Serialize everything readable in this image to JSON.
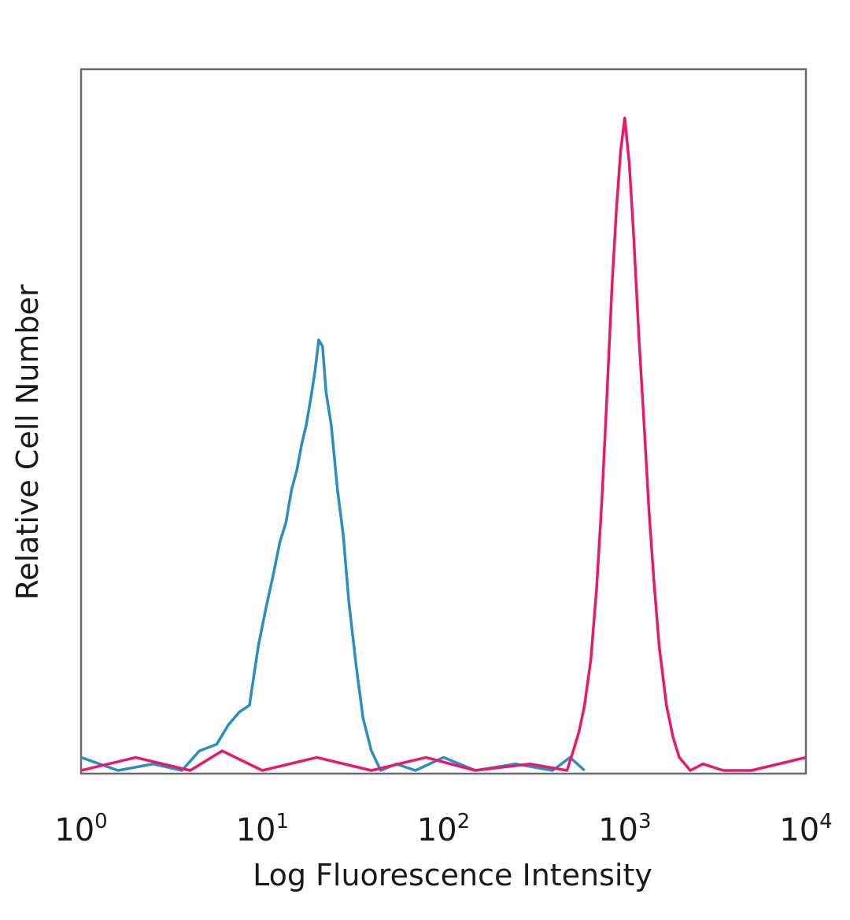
{
  "chart_data": {
    "type": "line",
    "title": "",
    "xlabel": "Log Fluorescence Intensity",
    "ylabel": "Relative Cell Number",
    "x_scale": "log",
    "xlim": [
      1,
      10000
    ],
    "ylim": [
      0,
      1
    ],
    "grid": false,
    "legend": "none",
    "x_ticks": [
      {
        "base": "10",
        "exp": "0",
        "value": 1
      },
      {
        "base": "10",
        "exp": "1",
        "value": 10
      },
      {
        "base": "10",
        "exp": "2",
        "value": 100
      },
      {
        "base": "10",
        "exp": "3",
        "value": 1000
      },
      {
        "base": "10",
        "exp": "4",
        "value": 10000
      }
    ],
    "series": [
      {
        "color": "#2a8fc0",
        "x": [
          1,
          1.6,
          2.5,
          3.6,
          4.5,
          5.6,
          6.5,
          7.5,
          8.5,
          9.5,
          10.5,
          11.5,
          12.5,
          13.5,
          14.5,
          15.5,
          16.5,
          17.5,
          18.5,
          19.5,
          20.5,
          21.5,
          22.5,
          24,
          26,
          28,
          30,
          33,
          36,
          40,
          45,
          55,
          70,
          100,
          150,
          250,
          400,
          500,
          600
        ],
        "y": [
          0.02,
          0.0,
          0.01,
          0.0,
          0.03,
          0.04,
          0.07,
          0.09,
          0.1,
          0.19,
          0.25,
          0.3,
          0.35,
          0.38,
          0.43,
          0.46,
          0.5,
          0.53,
          0.57,
          0.61,
          0.66,
          0.65,
          0.58,
          0.53,
          0.43,
          0.36,
          0.26,
          0.16,
          0.08,
          0.03,
          0.0,
          0.01,
          0.0,
          0.02,
          0.0,
          0.01,
          0.0,
          0.02,
          0.0
        ]
      },
      {
        "color": "#e8196b",
        "x": [
          1,
          2,
          4,
          6,
          10,
          20,
          40,
          80,
          150,
          300,
          480,
          520,
          560,
          600,
          650,
          700,
          750,
          800,
          850,
          900,
          950,
          1000,
          1060,
          1120,
          1200,
          1280,
          1360,
          1450,
          1550,
          1700,
          1850,
          2000,
          2300,
          2700,
          3500,
          5000,
          10000
        ],
        "y": [
          0.0,
          0.02,
          0.0,
          0.03,
          0.0,
          0.02,
          0.0,
          0.02,
          0.0,
          0.01,
          0.0,
          0.03,
          0.06,
          0.1,
          0.17,
          0.28,
          0.42,
          0.58,
          0.74,
          0.86,
          0.95,
          1.0,
          0.93,
          0.82,
          0.66,
          0.53,
          0.4,
          0.29,
          0.19,
          0.1,
          0.05,
          0.02,
          0.0,
          0.01,
          0.0,
          0.0,
          0.02
        ]
      }
    ]
  }
}
